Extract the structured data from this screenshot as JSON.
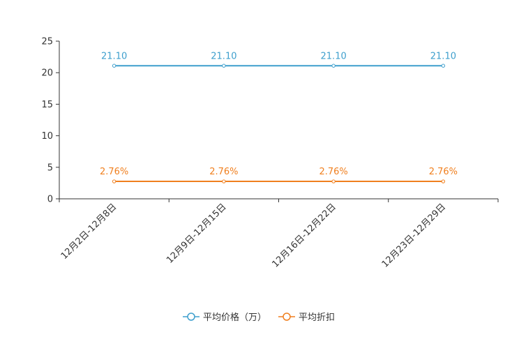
{
  "chart_data": {
    "type": "line",
    "categories": [
      "12月2日-12月8日",
      "12月9日-12月15日",
      "12月16日-12月22日",
      "12月23日-12月29日"
    ],
    "ylim": [
      0,
      25
    ],
    "yticks": [
      0,
      5,
      10,
      15,
      20,
      25
    ],
    "series": [
      {
        "name": "平均价格（万）",
        "values": [
          21.1,
          21.1,
          21.1,
          21.1
        ],
        "labels": [
          "21.10",
          "21.10",
          "21.10",
          "21.10"
        ],
        "color": "#3e9fcd"
      },
      {
        "name": "平均折扣",
        "values": [
          2.76,
          2.76,
          2.76,
          2.76
        ],
        "labels": [
          "2.76%",
          "2.76%",
          "2.76%",
          "2.76%"
        ],
        "color": "#f07f1e"
      }
    ]
  }
}
